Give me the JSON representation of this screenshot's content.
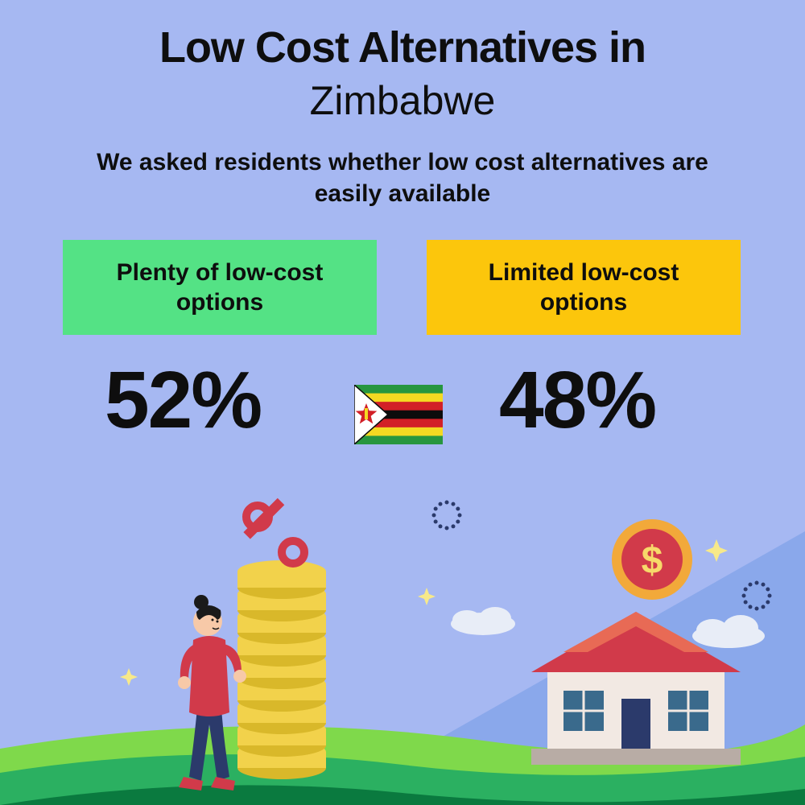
{
  "type": "infographic",
  "background_color": "#a6b8f2",
  "text_color": "#0e0e0e",
  "title": {
    "line1": "Low Cost Alternatives in",
    "line2": "Zimbabwe",
    "line1_weight": 900,
    "line2_weight": 400,
    "fontsize": 54
  },
  "subtitle": {
    "text": "We asked residents whether low cost alternatives are easily available",
    "fontsize": 30,
    "weight": 700
  },
  "cards": {
    "left": {
      "label": "Plenty of low-cost options",
      "bg": "#54e285",
      "value": "52%"
    },
    "right": {
      "label": "Limited low-cost options",
      "bg": "#fcc60c",
      "value": "48%"
    },
    "fontsize": 30,
    "value_fontsize": 100,
    "value_weight": 900
  },
  "flag": {
    "name": "zimbabwe-flag",
    "stripes": [
      "#27963f",
      "#f4d922",
      "#d22027",
      "#0c0c0c",
      "#d22027",
      "#f4d922",
      "#27963f"
    ],
    "triangle_fill": "#ffffff",
    "triangle_border": "#0c0c0c",
    "star_fill": "#d22027",
    "bird_fill": "#f4d922"
  },
  "illustration": {
    "ground_dark": "#0a7a3f",
    "ground_mid": "#2bb061",
    "ground_light": "#7fd94b",
    "sky_ray": "#8aa8eb",
    "coin_stack": "#f2d24b",
    "coin_edge": "#d9b82a",
    "percent_symbol": "#d13a4a",
    "person_shirt": "#d13a4a",
    "person_pants": "#2b3a6b",
    "person_skin": "#f7c9a8",
    "person_hair": "#1a1a1a",
    "house_wall": "#f2e9e3",
    "house_roof": "#d13a4a",
    "house_roof_top": "#e86a55",
    "house_window": "#3a6a8c",
    "house_door": "#2b3a6b",
    "house_base": "#b8aca5",
    "dollar_coin_outer": "#f2a93a",
    "dollar_coin_inner": "#d13a4a",
    "dollar_sign": "#f7d96a",
    "cloud": "#e8edf7",
    "sparkle": "#f7e98a",
    "dotted_circle": "#2b3a6b"
  }
}
